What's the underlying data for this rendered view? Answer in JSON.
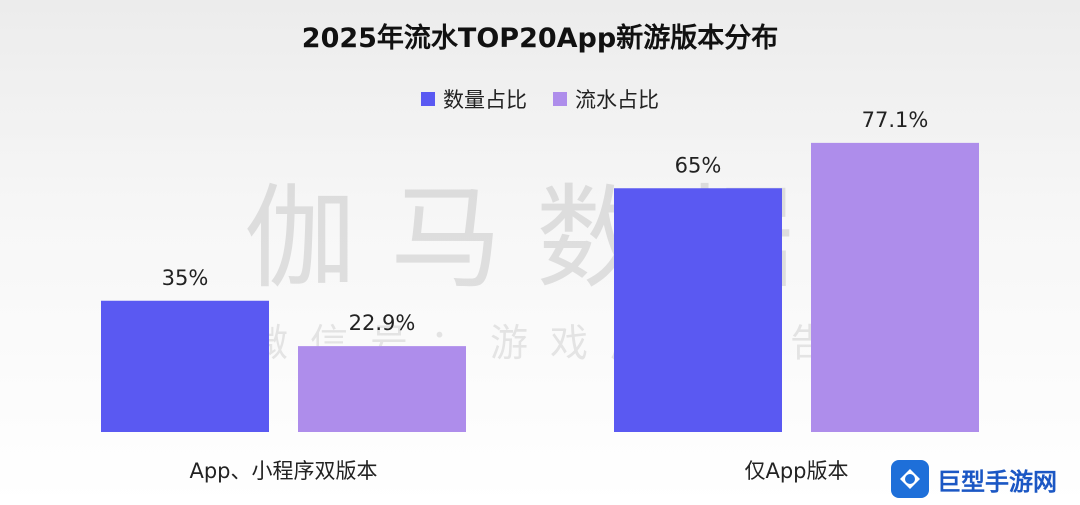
{
  "title": "2025年流水TOP20App新游版本分布",
  "watermark": {
    "main": "伽马数据",
    "sub": "微信号：游戏产业报告"
  },
  "corner_logo": {
    "text": "巨型手游网"
  },
  "colors": {
    "count": "#5a59f2",
    "revenue": "#ae8deb"
  },
  "chart_data": {
    "type": "bar",
    "title": "2025年流水TOP20App新游版本分布",
    "categories": [
      "App、小程序双版本",
      "仅App版本"
    ],
    "series": [
      {
        "name": "数量占比",
        "values": [
          35,
          65
        ],
        "labels": [
          "35%",
          "65%"
        ]
      },
      {
        "name": "流水占比",
        "values": [
          22.9,
          77.1
        ],
        "labels": [
          "22.9%",
          "77.1%"
        ]
      }
    ],
    "ylim": [
      0,
      100
    ],
    "grid": false,
    "legend": "top"
  }
}
